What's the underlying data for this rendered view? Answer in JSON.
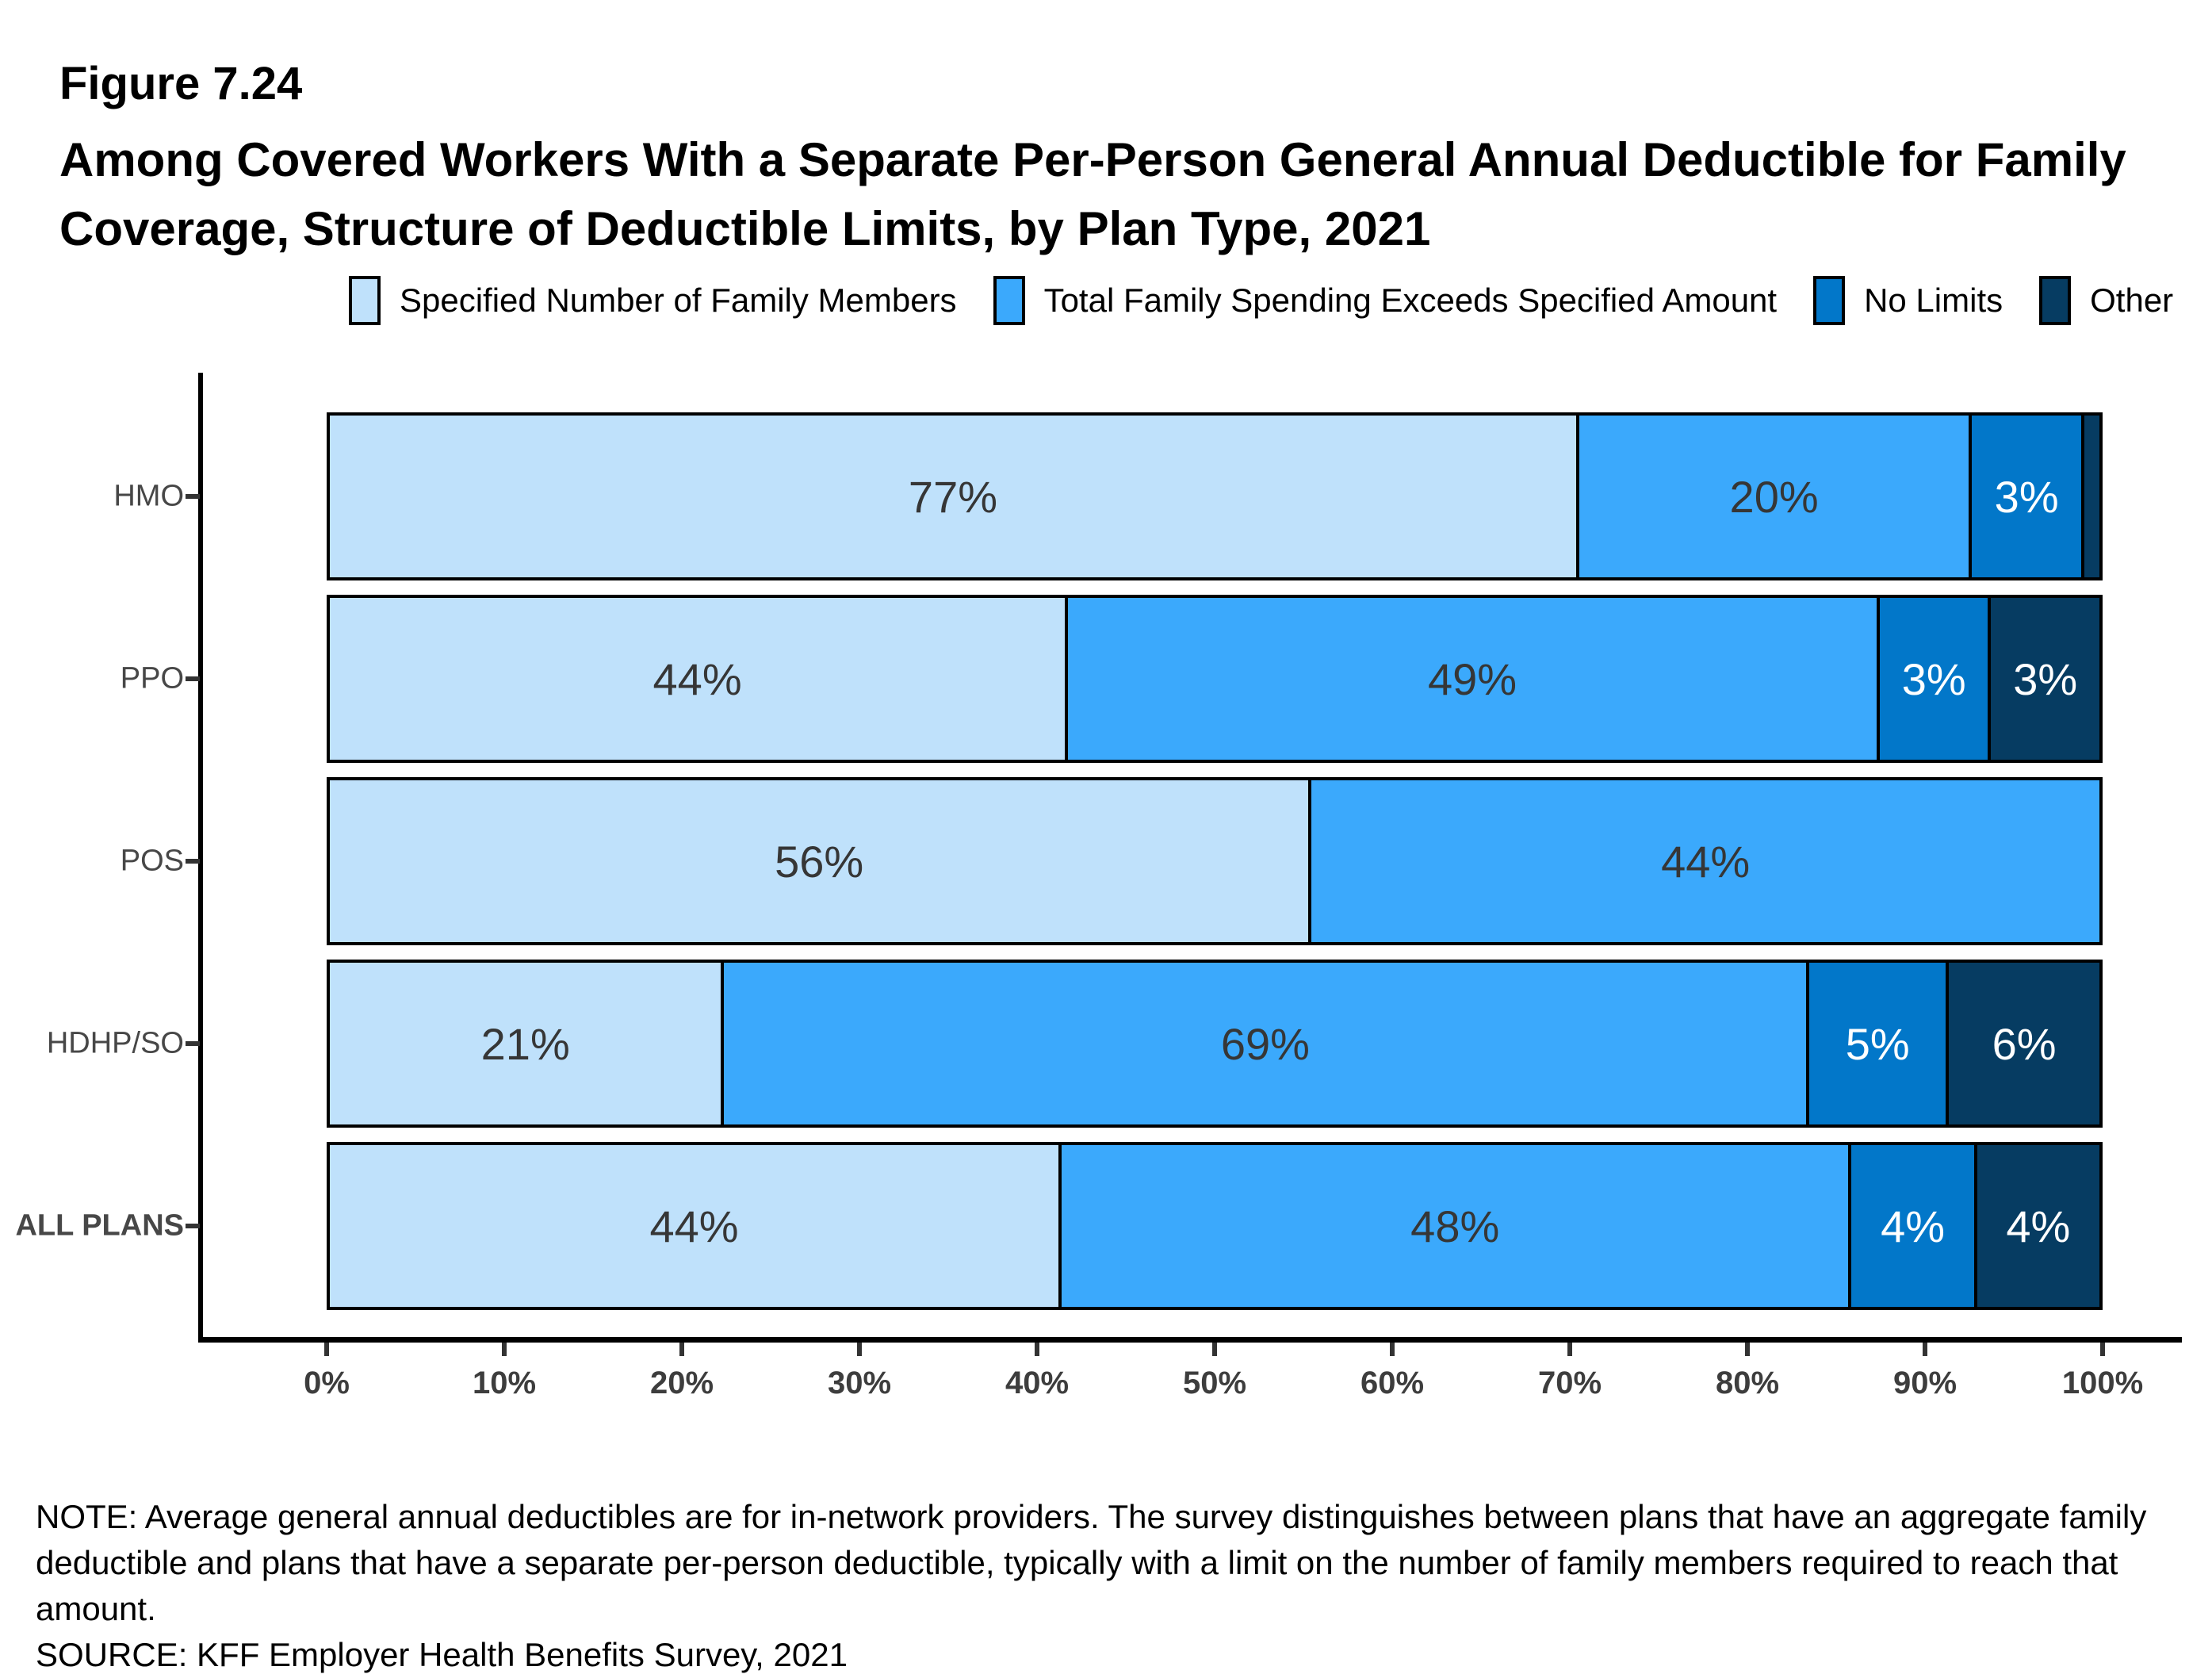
{
  "figure": {
    "number": "Figure 7.24",
    "title_line1": "Among Covered Workers With a Separate Per-Person General Annual Deductible for Family",
    "title_line2": "Coverage, Structure of Deductible Limits, by Plan Type, 2021"
  },
  "colors": {
    "specified_members": "#BFE1FB",
    "total_spending": "#3BA9FC",
    "no_limits": "#0277C9",
    "other": "#063C62",
    "dark_label": "#363636",
    "light_label": "#ffffff",
    "axis": "#000000"
  },
  "chart_data": {
    "type": "bar",
    "orientation": "horizontal",
    "stacked": true,
    "title": "Among Covered Workers With a Separate Per-Person General Annual Deductible for Family Coverage, Structure of Deductible Limits, by Plan Type, 2021",
    "categories": [
      {
        "label": "HMO",
        "emphasis": false
      },
      {
        "label": "PPO",
        "emphasis": false
      },
      {
        "label": "POS",
        "emphasis": false
      },
      {
        "label": "HDHP/SO",
        "emphasis": false
      },
      {
        "label": "ALL PLANS",
        "emphasis": true
      }
    ],
    "series": [
      {
        "name": "Specified Number of Family Members",
        "color": "#BFE1FB",
        "values": [
          77,
          44,
          56,
          21,
          44
        ]
      },
      {
        "name": "Total Family Spending Exceeds Specified Amount",
        "color": "#3BA9FC",
        "values": [
          20,
          49,
          44,
          69,
          48
        ]
      },
      {
        "name": "No Limits",
        "color": "#0277C9",
        "values": [
          3,
          3,
          0,
          5,
          4
        ]
      },
      {
        "name": "Other",
        "color": "#063C62",
        "values": [
          1,
          3,
          0,
          6,
          4
        ]
      }
    ],
    "display_labels": [
      [
        "77%",
        "20%",
        "3%",
        ""
      ],
      [
        "44%",
        "49%",
        "3%",
        "3%"
      ],
      [
        "56%",
        "44%",
        "",
        ""
      ],
      [
        "21%",
        "69%",
        "5%",
        "6%"
      ],
      [
        "44%",
        "48%",
        "4%",
        "4%"
      ]
    ],
    "x_ticks": [
      "0%",
      "10%",
      "20%",
      "30%",
      "40%",
      "50%",
      "60%",
      "70%",
      "80%",
      "90%",
      "100%"
    ],
    "xlim": [
      0,
      100
    ],
    "grid": false,
    "legend_position": "top"
  },
  "legend": [
    {
      "label": "Specified Number of Family Members",
      "color": "#BFE1FB"
    },
    {
      "label": "Total Family Spending Exceeds Specified Amount",
      "color": "#3BA9FC"
    },
    {
      "label": "No Limits",
      "color": "#0277C9"
    },
    {
      "label": "Other",
      "color": "#063C62"
    }
  ],
  "notes": {
    "line1": "NOTE: Average general annual deductibles are for in-network providers. The survey distinguishes between plans that have an aggregate family",
    "line2": "deductible and plans that have a separate per-person deductible, typically with a limit on the number of family members required to reach that",
    "line3": "amount.",
    "source": "SOURCE: KFF Employer Health Benefits Survey, 2021"
  }
}
